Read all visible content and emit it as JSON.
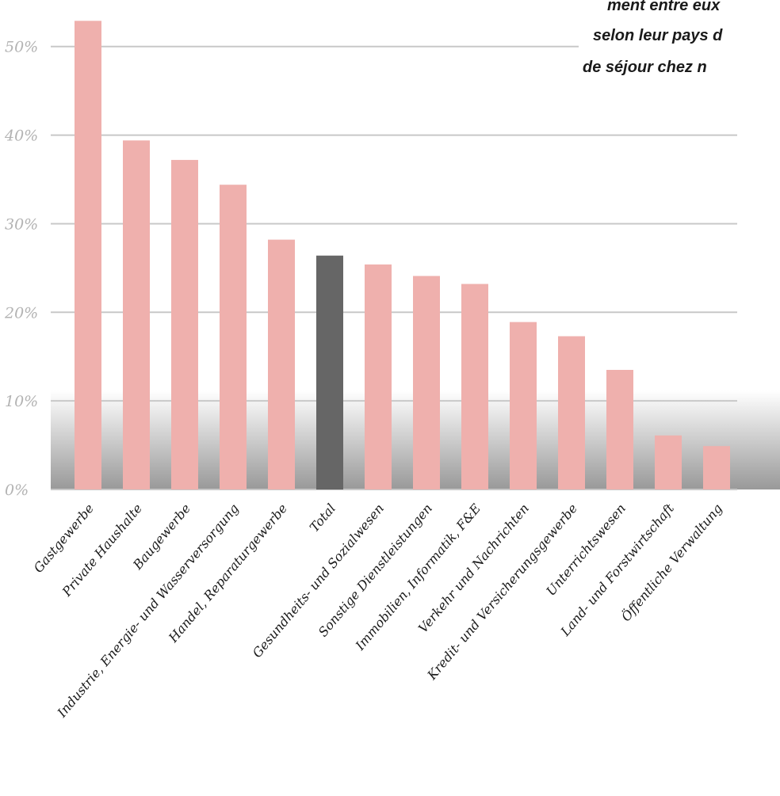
{
  "chart_data": {
    "type": "bar",
    "categories": [
      "Gastgewerbe",
      "Private Haushalte",
      "Baugewerbe",
      "Industrie, Energie- und Wasserversorgung",
      "Handel, Reparaturgewerbe",
      "Total",
      "Gesundheits- und Sozialwesen",
      "Sonstige Dienstleistungen",
      "Immobilien, Informatik, F&E",
      "Verkehr und Nachrichten",
      "Kredit- und Versicherungsgewerbe",
      "Unterrichtswesen",
      "Land- und Forstwirtschaft",
      "Öffentliche Verwaltung"
    ],
    "values": [
      52.9,
      39.4,
      37.2,
      34.4,
      28.2,
      26.4,
      25.4,
      24.1,
      23.2,
      18.9,
      17.3,
      13.5,
      6.1,
      4.9
    ],
    "highlight_category": "Total",
    "ylim": [
      0,
      54
    ],
    "yticks": [
      0,
      10,
      20,
      30,
      40,
      50
    ],
    "ytick_labels": [
      "0%",
      "10%",
      "20%",
      "30%",
      "40%",
      "50%"
    ],
    "grid": true,
    "title": "",
    "xlabel": "",
    "ylabel": "",
    "colors": {
      "bar": "#efb0ad",
      "highlight_bar": "#666666",
      "grid": "#c8c8c8",
      "tick_label": "#b3b3b3",
      "category_label": "#1a1a1a"
    }
  },
  "annotation": {
    "lines": [
      "ment entre eux",
      "selon leur pays d",
      "de séjour chez n"
    ]
  }
}
